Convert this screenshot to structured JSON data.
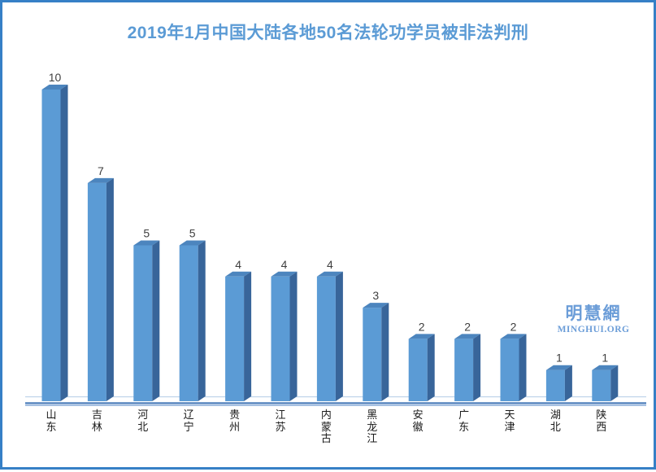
{
  "frame": {
    "border_color": "#3680C6",
    "background": "#FFFFFF"
  },
  "title": {
    "text": "2019年1月中国大陆各地50名法轮功学员被非法判刑",
    "color": "#5B9BD5"
  },
  "watermark": {
    "line1": "明慧網",
    "line2": "MINGHUI.ORG",
    "color": "#6B9DD8"
  },
  "chart_data": {
    "type": "bar",
    "title": "2019年1月中国大陆各地50名法轮功学员被非法判刑",
    "categories": [
      "山东",
      "吉林",
      "河北",
      "辽宁",
      "贵州",
      "江苏",
      "内蒙古",
      "黑龙江",
      "安徽",
      "广东",
      "天津",
      "湖北",
      "陕西"
    ],
    "values": [
      10,
      7,
      5,
      5,
      4,
      4,
      4,
      3,
      2,
      2,
      2,
      1,
      1
    ],
    "total": 50,
    "xlabel": "",
    "ylabel": "",
    "ylim": [
      0,
      10
    ],
    "grid": false,
    "legend": "none",
    "data_labels": true,
    "style_3d": true,
    "colors": {
      "bar_front": "#5B9BD5",
      "bar_side": "#38659A",
      "bar_top": "#4C85BE",
      "value_label": "#3F3F3F",
      "category_label": "#1A1A1A",
      "axis_line": "#4A7CBA",
      "axis_line_light": "#9FBCDF",
      "floor_back_line": "#BFD4EA"
    }
  }
}
